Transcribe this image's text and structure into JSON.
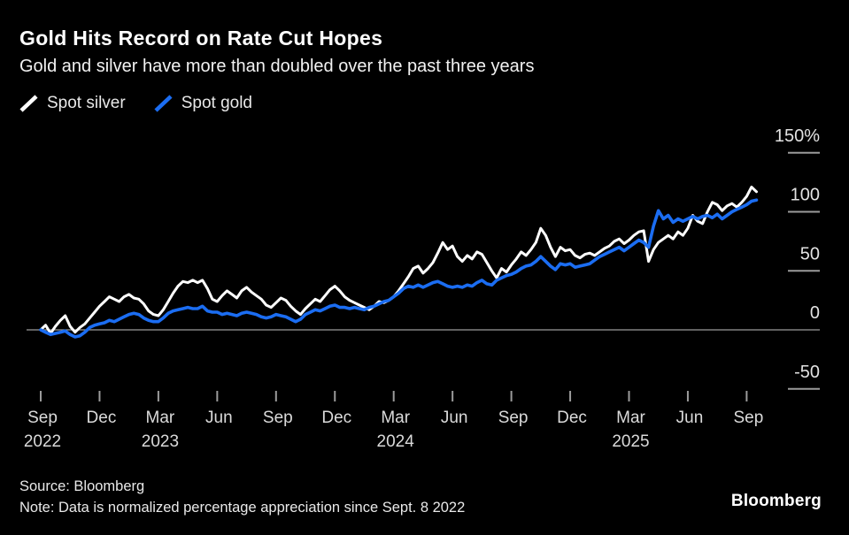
{
  "header": {
    "title": "Gold Hits Record on Rate Cut Hopes",
    "subtitle": "Gold and silver have more than doubled over the past three years"
  },
  "legend": [
    {
      "label": "Spot silver",
      "color": "#ffffff"
    },
    {
      "label": "Spot gold",
      "color": "#1b6df2"
    }
  ],
  "footer": {
    "source": "Source: Bloomberg",
    "note": "Note: Data is normalized percentage appreciation since Sept. 8 2022",
    "logo": "Bloomberg"
  },
  "chart_data": {
    "type": "line",
    "title": "Gold Hits Record on Rate Cut Hopes",
    "subtitle": "Gold and silver have more than doubled over the past three years",
    "ylabel": "Normalized percentage appreciation since Sept. 8 2022 (%)",
    "xlabel": "",
    "grid": "zero-line-only",
    "legend_position": "top-left",
    "ylim": [
      -50,
      150
    ],
    "y_ticks": [
      {
        "value": 150,
        "label": "150%"
      },
      {
        "value": 100,
        "label": "100"
      },
      {
        "value": 50,
        "label": "50"
      },
      {
        "value": 0,
        "label": "0"
      },
      {
        "value": -50,
        "label": "-50"
      }
    ],
    "x_tick_labels": [
      "Sep",
      "Dec",
      "Mar",
      "Jun",
      "Sep",
      "Dec",
      "Mar",
      "Jun",
      "Sep",
      "Dec",
      "Mar",
      "Jun",
      "Sep"
    ],
    "x_year_labels": [
      {
        "tick_index": 0,
        "label": "2022"
      },
      {
        "tick_index": 2,
        "label": "2023"
      },
      {
        "tick_index": 6,
        "label": "2024"
      },
      {
        "tick_index": 10,
        "label": "2025"
      }
    ],
    "x_unit": "months since Sep 2022",
    "t_step_months": 0.25,
    "series": [
      {
        "name": "Spot silver",
        "color": "#ffffff",
        "width": 3,
        "values": [
          0,
          4,
          -3,
          3,
          8,
          12,
          3,
          -2,
          2,
          5,
          10,
          15,
          20,
          24,
          28,
          26,
          24,
          28,
          30,
          27,
          26,
          22,
          16,
          13,
          12,
          17,
          24,
          31,
          37,
          41,
          40,
          42,
          40,
          42,
          35,
          26,
          24,
          29,
          33,
          30,
          27,
          33,
          36,
          32,
          29,
          26,
          21,
          19,
          23,
          27,
          25,
          20,
          16,
          13,
          18,
          22,
          26,
          24,
          29,
          34,
          37,
          33,
          28,
          25,
          23,
          21,
          19,
          17,
          20,
          24,
          23,
          25,
          28,
          33,
          39,
          45,
          52,
          54,
          48,
          52,
          57,
          65,
          74,
          68,
          71,
          62,
          58,
          63,
          60,
          66,
          64,
          57,
          50,
          44,
          52,
          49,
          55,
          60,
          66,
          63,
          68,
          74,
          86,
          80,
          70,
          62,
          70,
          67,
          68,
          63,
          61,
          64,
          65,
          63,
          66,
          69,
          71,
          75,
          77,
          73,
          76,
          80,
          83,
          84,
          58,
          68,
          74,
          77,
          80,
          77,
          83,
          80,
          86,
          97,
          92,
          90,
          100,
          108,
          106,
          101,
          105,
          107,
          104,
          108,
          113,
          121,
          117
        ]
      },
      {
        "name": "Spot gold",
        "color": "#1b6df2",
        "width": 3.6,
        "values": [
          0,
          -2,
          -4,
          -3,
          -2,
          -1,
          -4,
          -6,
          -5,
          -2,
          2,
          4,
          5,
          6,
          8,
          7,
          9,
          11,
          13,
          14,
          13,
          10,
          8,
          7,
          7,
          10,
          14,
          16,
          17,
          18,
          19,
          18,
          18,
          20,
          16,
          15,
          15,
          13,
          14,
          13,
          12,
          14,
          15,
          14,
          13,
          11,
          10,
          11,
          13,
          12,
          11,
          9,
          7,
          9,
          13,
          15,
          17,
          16,
          18,
          20,
          21,
          19,
          19,
          18,
          19,
          18,
          17,
          19,
          20,
          22,
          24,
          25,
          28,
          31,
          35,
          37,
          36,
          38,
          36,
          38,
          40,
          41,
          39,
          37,
          36,
          37,
          36,
          38,
          37,
          40,
          42,
          39,
          38,
          42,
          44,
          46,
          47,
          49,
          52,
          54,
          55,
          58,
          62,
          58,
          54,
          51,
          56,
          55,
          56,
          53,
          54,
          55,
          56,
          59,
          62,
          64,
          66,
          68,
          70,
          67,
          70,
          73,
          76,
          74,
          70,
          88,
          101,
          94,
          97,
          91,
          94,
          92,
          94,
          96,
          94,
          96,
          97,
          95,
          98,
          94,
          97,
          100,
          102,
          104,
          106,
          109,
          110
        ]
      }
    ]
  }
}
